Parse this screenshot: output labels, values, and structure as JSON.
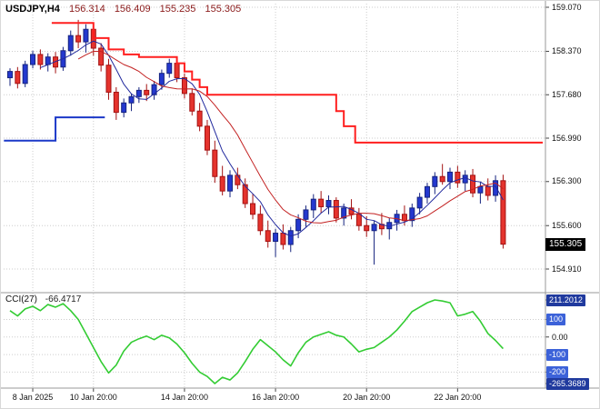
{
  "colors": {
    "bull": "#2438cf",
    "bull_border": "#16247f",
    "bear": "#e5332d",
    "bear_border": "#a31212",
    "ma_fast": "#222a9e",
    "ma_slow": "#c32222",
    "step_up": "#1b38c8",
    "step_down": "#ff1f1f",
    "cci_line": "#33cc33",
    "grid": "#cdcdcd",
    "separator": "#9a9a9a",
    "badge_bg": "#3c62d9",
    "badge_dark_bg": "#203a9e",
    "price_badge_bg": "#000000"
  },
  "chart_data": [
    {
      "type": "candlestick",
      "title": "USDJPY,H4",
      "ohlc_display": {
        "open": "156.314",
        "high": "156.409",
        "low": "155.235",
        "close": "155.305"
      },
      "current_price": 155.305,
      "y_ticks": [
        159.07,
        158.37,
        157.68,
        156.99,
        156.3,
        155.6,
        154.91
      ],
      "x_ticks": [
        {
          "bar": 3,
          "label": "8 Jan 2025"
        },
        {
          "bar": 11,
          "label": "10 Jan 20:00"
        },
        {
          "bar": 23,
          "label": "14 Jan 20:00"
        },
        {
          "bar": 35,
          "label": "16 Jan 20:00"
        },
        {
          "bar": 47,
          "label": "20 Jan 20:00"
        },
        {
          "bar": 59,
          "label": "22 Jan 20:00"
        }
      ],
      "bars": [
        [
          157.95,
          158.1,
          157.82,
          158.05
        ],
        [
          158.05,
          158.12,
          157.78,
          157.86
        ],
        [
          157.86,
          158.22,
          157.8,
          158.16
        ],
        [
          158.16,
          158.38,
          158.1,
          158.32
        ],
        [
          158.32,
          158.4,
          158.08,
          158.16
        ],
        [
          158.16,
          158.34,
          158.05,
          158.28
        ],
        [
          158.28,
          158.36,
          158.02,
          158.12
        ],
        [
          158.12,
          158.44,
          158.06,
          158.38
        ],
        [
          158.38,
          158.7,
          158.3,
          158.62
        ],
        [
          158.62,
          158.87,
          158.42,
          158.52
        ],
        [
          158.52,
          158.8,
          158.35,
          158.72
        ],
        [
          158.72,
          158.76,
          158.3,
          158.42
        ],
        [
          158.42,
          158.5,
          158.05,
          158.15
        ],
        [
          158.15,
          158.25,
          157.6,
          157.72
        ],
        [
          157.72,
          157.8,
          157.28,
          157.4
        ],
        [
          157.4,
          157.62,
          157.32,
          157.55
        ],
        [
          157.55,
          157.7,
          157.42,
          157.65
        ],
        [
          157.65,
          157.8,
          157.55,
          157.75
        ],
        [
          157.75,
          157.85,
          157.58,
          157.68
        ],
        [
          157.68,
          157.9,
          157.6,
          157.84
        ],
        [
          157.84,
          158.08,
          157.76,
          158.02
        ],
        [
          158.02,
          158.25,
          157.95,
          158.18
        ],
        [
          158.18,
          158.22,
          157.88,
          157.95
        ],
        [
          157.95,
          158.02,
          157.62,
          157.7
        ],
        [
          157.7,
          157.78,
          157.35,
          157.42
        ],
        [
          157.42,
          157.55,
          157.1,
          157.18
        ],
        [
          157.18,
          157.28,
          156.72,
          156.8
        ],
        [
          156.8,
          156.95,
          156.28,
          156.38
        ],
        [
          156.38,
          156.55,
          156.08,
          156.15
        ],
        [
          156.15,
          156.48,
          156.05,
          156.4
        ],
        [
          156.4,
          156.52,
          156.18,
          156.25
        ],
        [
          156.25,
          156.35,
          155.88,
          155.95
        ],
        [
          155.95,
          156.1,
          155.7,
          155.78
        ],
        [
          155.78,
          155.92,
          155.45,
          155.52
        ],
        [
          155.52,
          155.68,
          155.25,
          155.35
        ],
        [
          155.35,
          155.55,
          155.1,
          155.48
        ],
        [
          155.48,
          155.62,
          155.22,
          155.3
        ],
        [
          155.3,
          155.58,
          155.18,
          155.52
        ],
        [
          155.52,
          155.78,
          155.4,
          155.7
        ],
        [
          155.7,
          155.92,
          155.58,
          155.85
        ],
        [
          155.85,
          156.1,
          155.72,
          156.02
        ],
        [
          156.02,
          156.15,
          155.8,
          155.9
        ],
        [
          155.9,
          156.08,
          155.78,
          156.0
        ],
        [
          156.0,
          156.05,
          155.65,
          155.72
        ],
        [
          155.72,
          155.95,
          155.6,
          155.88
        ],
        [
          155.88,
          156.02,
          155.7,
          155.78
        ],
        [
          155.78,
          155.88,
          155.52,
          155.6
        ],
        [
          155.6,
          155.75,
          155.42,
          155.52
        ],
        [
          155.52,
          155.68,
          154.98,
          155.62
        ],
        [
          155.62,
          155.8,
          155.45,
          155.55
        ],
        [
          155.55,
          155.72,
          155.38,
          155.65
        ],
        [
          155.65,
          155.85,
          155.52,
          155.78
        ],
        [
          155.78,
          155.92,
          155.6,
          155.68
        ],
        [
          155.68,
          155.95,
          155.58,
          155.88
        ],
        [
          155.88,
          156.12,
          155.78,
          156.05
        ],
        [
          156.05,
          156.28,
          155.95,
          156.22
        ],
        [
          156.22,
          156.45,
          156.1,
          156.38
        ],
        [
          156.38,
          156.58,
          156.25,
          156.3
        ],
        [
          156.3,
          156.52,
          156.18,
          156.45
        ],
        [
          156.45,
          156.55,
          156.2,
          156.28
        ],
        [
          156.28,
          156.48,
          156.15,
          156.4
        ],
        [
          156.4,
          156.5,
          156.05,
          156.12
        ],
        [
          156.12,
          156.3,
          155.95,
          156.22
        ],
        [
          156.22,
          156.35,
          156.0,
          156.08
        ],
        [
          156.08,
          156.4,
          155.98,
          156.314
        ],
        [
          156.314,
          156.409,
          155.235,
          155.305
        ]
      ],
      "overlays": {
        "support_step": {
          "name": "blue-step-support-line",
          "segments": [
            [
              -0.8,
              6,
              156.95
            ],
            [
              6,
              12.5,
              157.32
            ]
          ]
        },
        "resistance_step": {
          "name": "red-step-resistance-line",
          "segments": [
            [
              5.5,
              11,
              158.82
            ],
            [
              11,
              13,
              158.58
            ],
            [
              13,
              15,
              158.4
            ],
            [
              15,
              17,
              158.32
            ],
            [
              17,
              22,
              158.28
            ],
            [
              22,
              23,
              158.18
            ],
            [
              23,
              24,
              158.05
            ],
            [
              24,
              25,
              157.92
            ],
            [
              25,
              26,
              157.8
            ],
            [
              26,
              43,
              157.68
            ],
            [
              43,
              44,
              157.42
            ],
            [
              44,
              45.5,
              157.18
            ],
            [
              45.5,
              70.5,
              156.92
            ]
          ]
        },
        "ma_fast": {
          "period": 5
        },
        "ma_slow": {
          "period": 10
        }
      }
    },
    {
      "type": "line",
      "title": "CCI(27)",
      "current_value_text": "-66.4717",
      "range": [
        211.2012,
        -265.3689
      ],
      "levels": [
        100,
        0,
        -100,
        -200
      ],
      "y_axis": [
        {
          "value": 211.2012,
          "label": "211.2012",
          "style": "badge-dark"
        },
        {
          "value": 100,
          "label": "100",
          "style": "badge"
        },
        {
          "value": 0,
          "label": "0.00",
          "style": "plain"
        },
        {
          "value": -100,
          "label": "-100",
          "style": "badge"
        },
        {
          "value": -200,
          "label": "-200",
          "style": "badge"
        },
        {
          "value": -265.3689,
          "label": "-265.3689",
          "style": "badge-dark"
        }
      ],
      "values": [
        150,
        120,
        160,
        175,
        150,
        185,
        170,
        190,
        150,
        100,
        20,
        -60,
        -140,
        -205,
        -160,
        -80,
        -30,
        -10,
        5,
        -15,
        10,
        -5,
        -40,
        -90,
        -150,
        -200,
        -225,
        -265.3689,
        -230,
        -245,
        -205,
        -140,
        -70,
        -15,
        -50,
        -85,
        -130,
        -165,
        -90,
        -30,
        0,
        15,
        30,
        10,
        0,
        -40,
        -85,
        -70,
        -60,
        -30,
        0,
        40,
        90,
        145,
        170,
        195,
        211.2012,
        205,
        195,
        120,
        130,
        145,
        90,
        20,
        -20,
        -66.4717
      ]
    }
  ]
}
